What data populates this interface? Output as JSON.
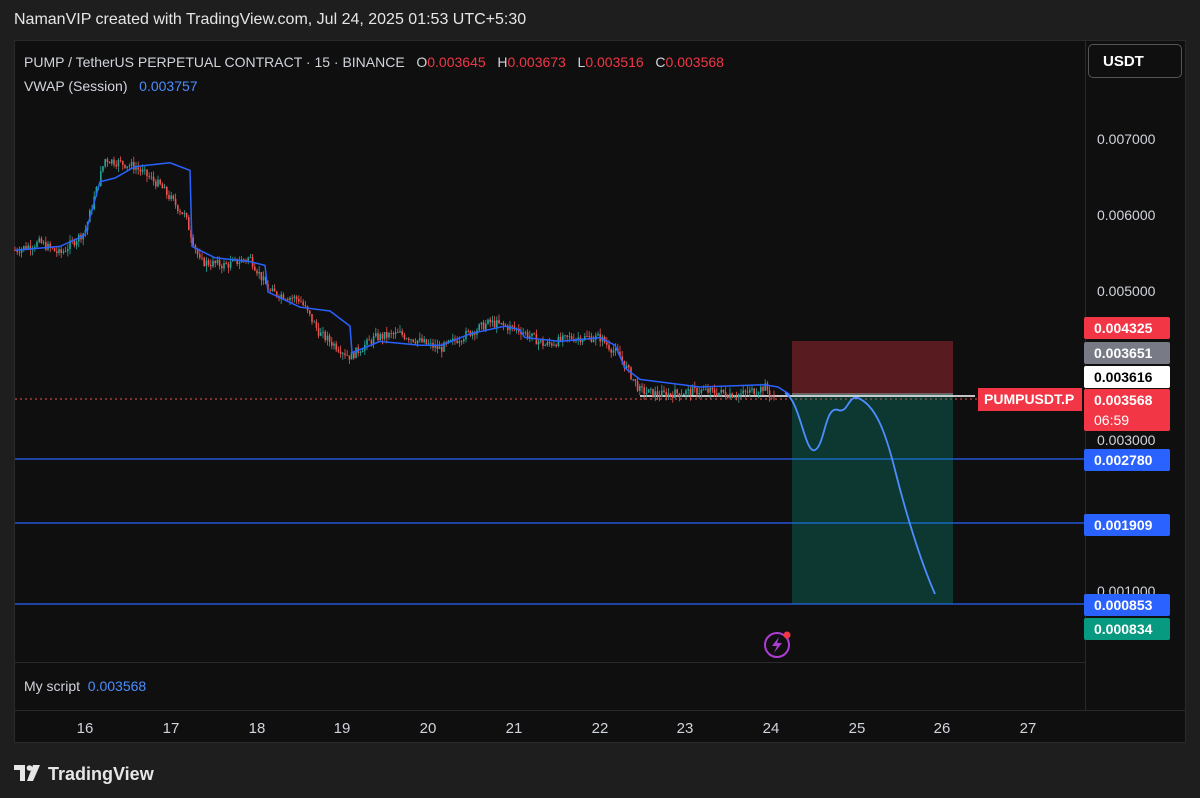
{
  "header": {
    "title": "NamanVIP created with TradingView.com, Jul 24, 2025 01:53 UTC+5:30"
  },
  "legend": {
    "symbol": "PUMP / TetherUS PERPETUAL CONTRACT · 15 · BINANCE",
    "o_label": "O",
    "o_value": "0.003645",
    "h_label": "H",
    "h_value": "0.003673",
    "l_label": "L",
    "l_value": "0.003516",
    "c_label": "C",
    "c_value": "0.003568",
    "indicator_name": "VWAP (Session)",
    "indicator_value": "0.003757"
  },
  "currency_button": "USDT",
  "price_scale": [
    "0.007000",
    "0.006000",
    "0.005000",
    "0.003000",
    "0.001000"
  ],
  "price_tags": {
    "stop": "0.004325",
    "entry_gray": "0.003651",
    "level_white": "0.003616",
    "last_price": "0.003568",
    "countdown": "06:59",
    "target1": "0.002780",
    "target2": "0.001909",
    "target3": "0.000853",
    "target_final": "0.000834"
  },
  "symbol_tag": "PUMPUSDT.P",
  "time_axis": [
    "16",
    "17",
    "18",
    "19",
    "20",
    "21",
    "22",
    "23",
    "24",
    "25",
    "26",
    "27"
  ],
  "script": {
    "label": "My script",
    "value": "0.003568"
  },
  "footer": {
    "brand": "TradingView"
  },
  "colors": {
    "up": "#26a69a",
    "down": "#ef5350",
    "vwap": "#2962ff",
    "stop_zone": "#f23645",
    "profit_zone": "#089981",
    "line_blue": "#2962ff"
  },
  "icons": {
    "bolt": "lightning-icon",
    "logo": "tradingview-logo-icon"
  }
}
